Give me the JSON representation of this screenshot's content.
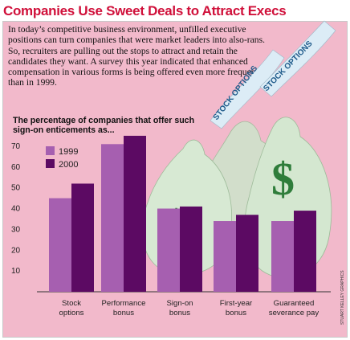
{
  "header": {
    "title": "Companies Use Sweet Deals to Attract Execs"
  },
  "intro": {
    "text": "In today’s competitive business environment, unfilled executive positions can turn companies that were market leaders into also-rans. So, recruiters are pulling out the stops to attract and retain the candidates they want. A survey this year indicated that enhanced compensation in various forms is being offered even more frequently than in 1999."
  },
  "illustration": {
    "ribbon_text_1": "STOCK OPTIONS",
    "ribbon_text_2": "STOCK OPTIONS"
  },
  "credit": "STUART KELLEY GRAPHICS",
  "colors": {
    "title": "#d0103a",
    "background": "#f2b9cb",
    "series_1999": "#a65fb0",
    "series_2000": "#5c0a63",
    "money_bag": "#cfe3cc",
    "dollar": "#2f7d3b"
  },
  "chart_data": {
    "type": "bar",
    "title": "The percentage of companies that offer such sign-on enticements as...",
    "xlabel": "",
    "ylabel": "",
    "ylim": [
      0,
      80
    ],
    "yticks": [
      10,
      20,
      30,
      40,
      50,
      60,
      70
    ],
    "grid": false,
    "legend_position": "top-left",
    "categories": [
      "Stock options",
      "Performance bonus",
      "Sign-on bonus",
      "First-year bonus",
      "Guaranteed severance pay"
    ],
    "category_lines": [
      [
        "Stock",
        "options"
      ],
      [
        "Performance",
        "bonus"
      ],
      [
        "Sign-on",
        "bonus"
      ],
      [
        "First-year",
        "bonus"
      ],
      [
        "Guaranteed",
        "severance pay"
      ]
    ],
    "series": [
      {
        "name": "1999",
        "color": "#a65fb0",
        "values": [
          45,
          71,
          40,
          34,
          34
        ]
      },
      {
        "name": "2000",
        "color": "#5c0a63",
        "values": [
          52,
          75,
          41,
          37,
          39
        ]
      }
    ]
  }
}
